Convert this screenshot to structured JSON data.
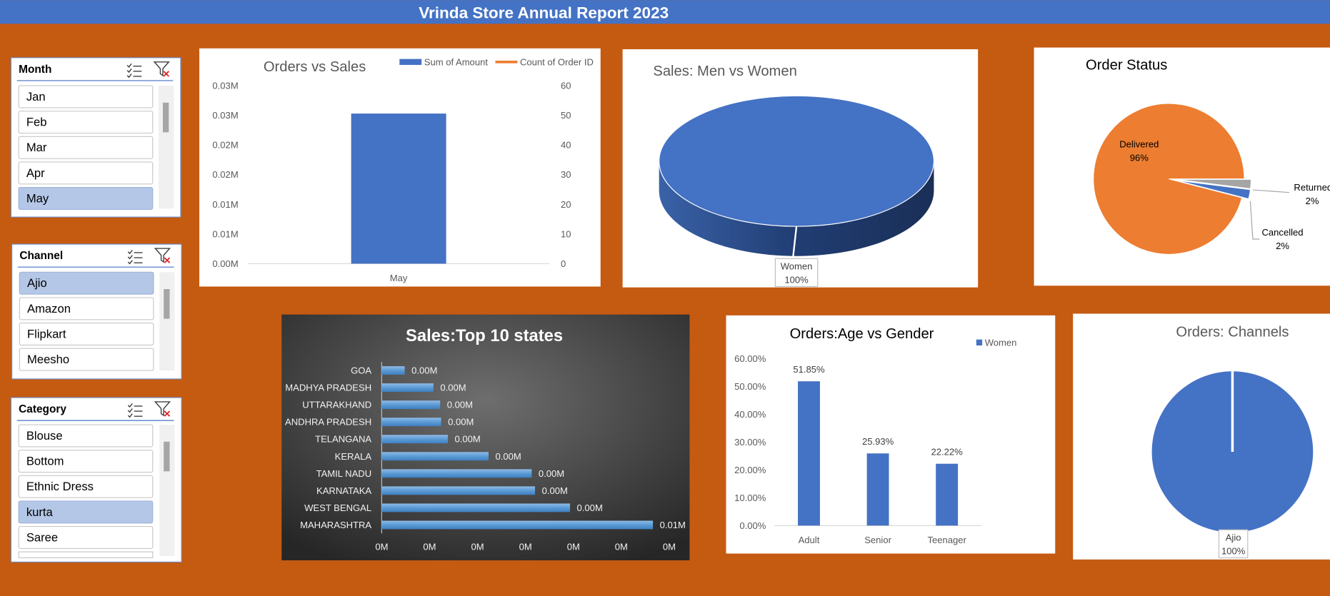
{
  "title": "Vrinda Store Annual Report 2023",
  "slicers": [
    {
      "title": "Month",
      "items": [
        "Jan",
        "Feb",
        "Mar",
        "Apr",
        "May"
      ],
      "selected": "May"
    },
    {
      "title": "Channel",
      "items": [
        "Ajio",
        "Amazon",
        "Flipkart",
        "Meesho"
      ],
      "selected": "Ajio"
    },
    {
      "title": "Category",
      "items": [
        "Blouse",
        "Bottom",
        "Ethnic Dress",
        "kurta",
        "Saree"
      ],
      "selected": "kurta"
    }
  ],
  "chart_data": [
    {
      "type": "bar",
      "title": "Orders vs Sales",
      "categories": [
        "May"
      ],
      "series": [
        {
          "name": "Sum of Amount",
          "color": "#4472c4",
          "values": [
            25300
          ]
        },
        {
          "name": "Count of Order ID",
          "color": "#ed7d31",
          "values": [
            null
          ],
          "axis": "y2",
          "type": "line"
        }
      ],
      "ylim": [
        0,
        30000
      ],
      "yticks": [
        {
          "value": 0,
          "label": "0.00M"
        },
        {
          "value": 5000,
          "label": "0.01M"
        },
        {
          "value": 10000,
          "label": "0.01M"
        },
        {
          "value": 15000,
          "label": "0.02M"
        },
        {
          "value": 20000,
          "label": "0.02M"
        },
        {
          "value": 25000,
          "label": "0.03M"
        },
        {
          "value": 30000,
          "label": "0.03M"
        }
      ],
      "y2lim": [
        0,
        60
      ],
      "y2ticks": [
        0,
        10,
        20,
        30,
        40,
        50,
        60
      ],
      "legend": "top-right"
    },
    {
      "type": "pie",
      "title": "Sales: Men vs Women",
      "categories": [
        "Women"
      ],
      "values": [
        100
      ],
      "value_labels": [
        "100%"
      ],
      "colors": [
        "#4472c4"
      ],
      "3d": true
    },
    {
      "type": "pie",
      "title": "Order Status",
      "categories": [
        "Delivered",
        "Returned",
        "Cancelled"
      ],
      "values": [
        96,
        2,
        2
      ],
      "value_labels": [
        "96%",
        "2%",
        "2%"
      ],
      "colors": [
        "#ed7d31",
        "#a5a5a5",
        "#4472c4"
      ]
    },
    {
      "type": "hbar",
      "title": "Sales:Top 10 states",
      "categories": [
        "GOA",
        "MADHYA PRADESH",
        "UTTARAKHAND",
        "ANDHRA PRADESH",
        "TELANGANA",
        "KERALA",
        "TAMIL NADU",
        "KARNATAKA",
        "WEST BENGAL",
        "MAHARASHTRA"
      ],
      "values": [
        480,
        1080,
        1220,
        1240,
        1380,
        2230,
        3130,
        3200,
        3930,
        5660
      ],
      "value_labels": [
        "0.00M",
        "0.00M",
        "0.00M",
        "0.00M",
        "0.00M",
        "0.00M",
        "0.00M",
        "0.00M",
        "0.00M",
        "0.01M"
      ],
      "color": "#5b9bd5",
      "xlim": [
        0,
        6000
      ],
      "xticks": [
        {
          "value": 0,
          "label": "0M"
        },
        {
          "value": 1000,
          "label": "0M"
        },
        {
          "value": 2000,
          "label": "0M"
        },
        {
          "value": 3000,
          "label": "0M"
        },
        {
          "value": 4000,
          "label": "0M"
        },
        {
          "value": 5000,
          "label": "0M"
        },
        {
          "value": 6000,
          "label": "0M"
        }
      ]
    },
    {
      "type": "bar",
      "title": "Orders:Age vs Gender",
      "categories": [
        "Adult",
        "Senior",
        "Teenager"
      ],
      "series": [
        {
          "name": "Women",
          "color": "#4472c4",
          "values": [
            51.85,
            25.93,
            22.22
          ],
          "value_labels": [
            "51.85%",
            "25.93%",
            "22.22%"
          ]
        }
      ],
      "ylim": [
        0,
        60
      ],
      "yticks": [
        {
          "value": 0,
          "label": "0.00%"
        },
        {
          "value": 10,
          "label": "10.00%"
        },
        {
          "value": 20,
          "label": "20.00%"
        },
        {
          "value": 30,
          "label": "30.00%"
        },
        {
          "value": 40,
          "label": "40.00%"
        },
        {
          "value": 50,
          "label": "50.00%"
        },
        {
          "value": 60,
          "label": "60.00%"
        }
      ],
      "legend": "top-right"
    },
    {
      "type": "pie",
      "title": "Orders: Channels",
      "categories": [
        "Ajio"
      ],
      "values": [
        100
      ],
      "value_labels": [
        "100%"
      ],
      "colors": [
        "#4472c4"
      ]
    }
  ]
}
